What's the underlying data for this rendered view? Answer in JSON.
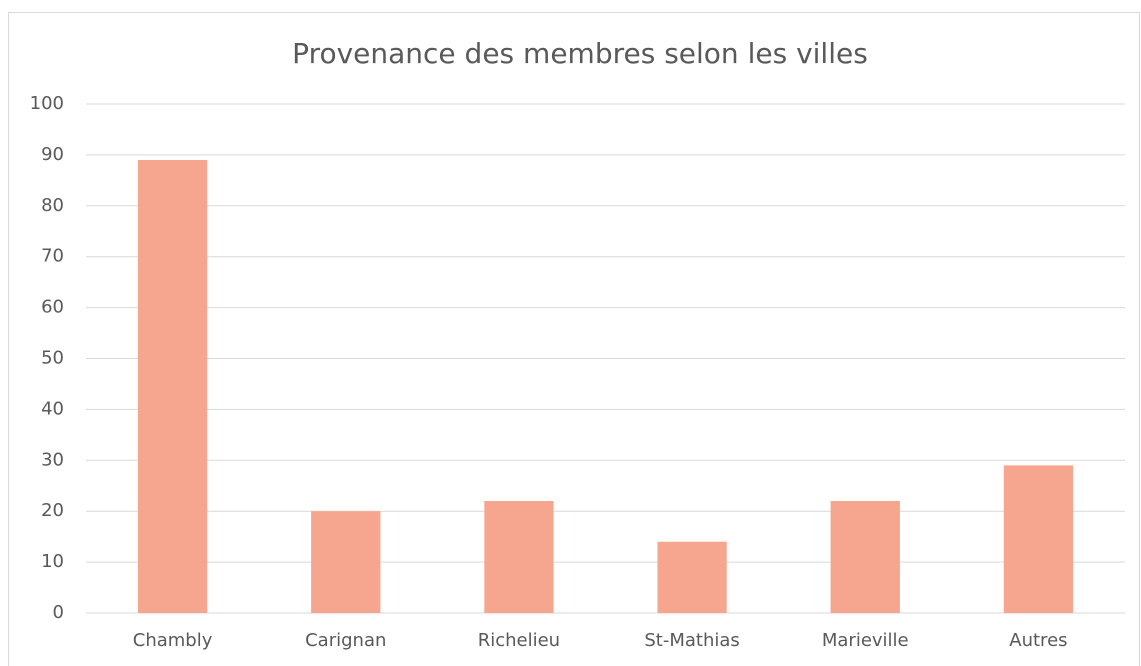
{
  "chart_data": {
    "type": "bar",
    "title": "Provenance des membres selon les villes",
    "categories": [
      "Chambly",
      "Carignan",
      "Richelieu",
      "St-Mathias",
      "Marieville",
      "Autres"
    ],
    "values": [
      89,
      20,
      22,
      14,
      22,
      29
    ],
    "color": "#f6a58e",
    "ylim": [
      0,
      100
    ],
    "yticks": [
      0,
      10,
      20,
      30,
      40,
      50,
      60,
      70,
      80,
      90,
      100
    ],
    "grid": true
  }
}
